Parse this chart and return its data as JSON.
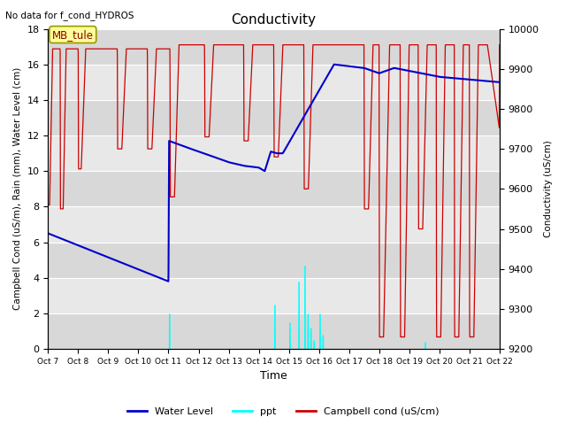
{
  "title": "Conductivity",
  "top_left_text": "No data for f_cond_HYDROS",
  "xlabel": "Time",
  "ylabel_left": "Campbell Cond (uS/m), Rain (mm), Water Level (cm)",
  "ylabel_right": "Conductivity (uS/cm)",
  "ylim_left": [
    0,
    18
  ],
  "ylim_right": [
    9200,
    10000
  ],
  "annotation_box": "MB_tule",
  "background_color": "#ffffff",
  "plot_bg_color": "#e0e0e0",
  "x_ticks": [
    "Oct 7",
    "Oct 8",
    "Oct 9",
    "Oct 10",
    "Oct 11",
    "Oct 12",
    "Oct 13",
    "Oct 14",
    "Oct 15",
    "Oct 16",
    "Oct 17",
    "Oct 18",
    "Oct 19",
    "Oct 20",
    "Oct 21",
    "Oct 22"
  ],
  "water_level_color": "#0000cc",
  "ppt_color": "#00ffff",
  "campbell_color": "#cc0000",
  "legend_labels": [
    "Water Level",
    "ppt",
    "Campbell cond (uS/cm)"
  ],
  "yticks_left": [
    0,
    2,
    4,
    6,
    8,
    10,
    12,
    14,
    16,
    18
  ],
  "yticks_right": [
    9200,
    9300,
    9400,
    9500,
    9600,
    9700,
    9800,
    9900,
    10000
  ]
}
